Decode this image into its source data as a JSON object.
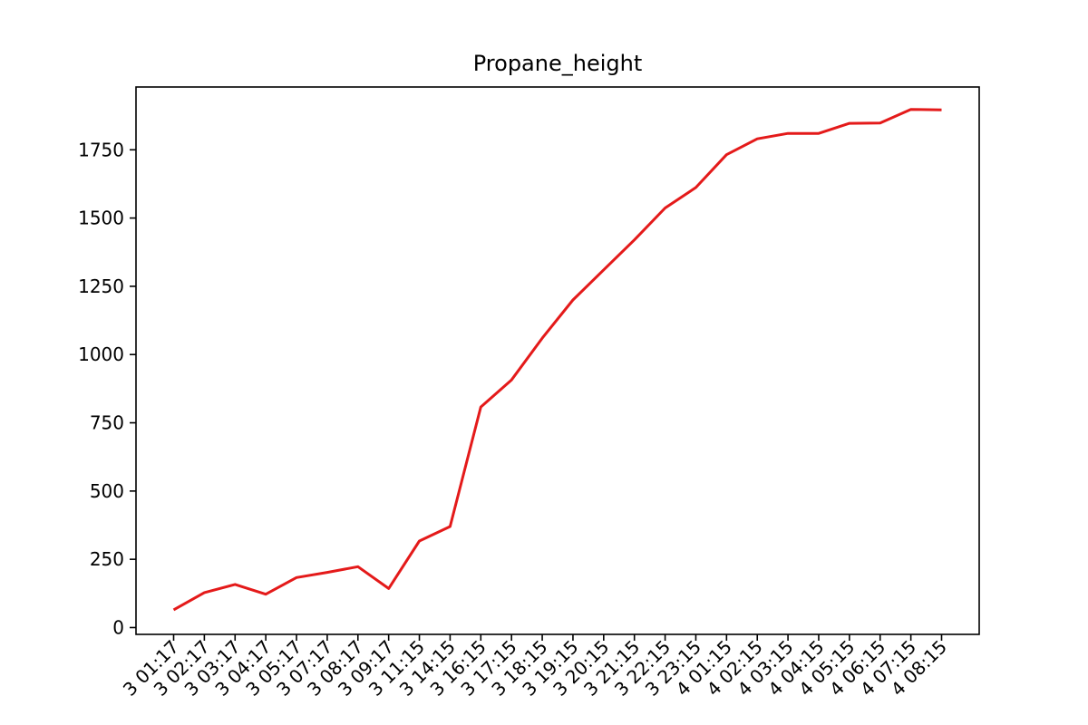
{
  "chart_data": {
    "type": "line",
    "title": "Propane_height",
    "xlabel": "",
    "ylabel": "",
    "ylim": [
      -25,
      1980
    ],
    "yticks": [
      0,
      250,
      500,
      750,
      1000,
      1250,
      1500,
      1750
    ],
    "grid": false,
    "x": [
      "3 01:17",
      "3 02:17",
      "3 03:17",
      "3 04:17",
      "3 05:17",
      "3 07:17",
      "3 08:17",
      "3 09:17",
      "3 11:15",
      "3 14:15",
      "3 16:15",
      "3 17:15",
      "3 18:15",
      "3 19:15",
      "3 20:15",
      "3 21:15",
      "3 22:15",
      "3 23:15",
      "4 01:15",
      "4 02:15",
      "4 03:15",
      "4 04:15",
      "4 05:15",
      "4 06:15",
      "4 07:15",
      "4 08:15"
    ],
    "series": [
      {
        "color": "#e41a1a",
        "values": [
          65,
          128,
          158,
          122,
          183,
          202,
          223,
          143,
          317,
          370,
          808,
          907,
          1060,
          1200,
          1310,
          1420,
          1537,
          1612,
          1732,
          1790,
          1810,
          1810,
          1847,
          1848,
          1898,
          1896
        ]
      }
    ]
  }
}
